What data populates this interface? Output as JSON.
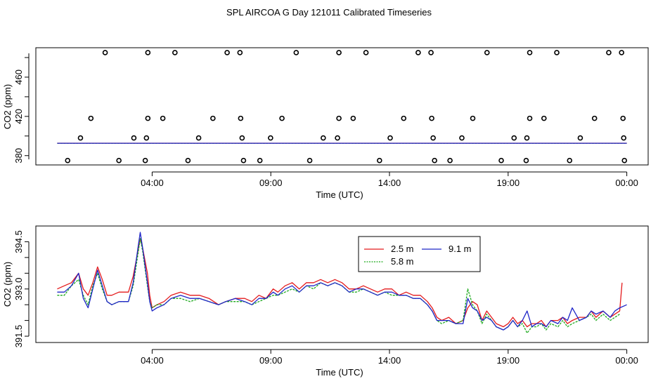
{
  "title": "SPL AIRCOA G  Day 121011  Calibrated Timeseries",
  "chart_data": [
    {
      "type": "scatter",
      "title": "",
      "xlabel": "Time (UTC)",
      "ylabel": "CO2 (ppm)",
      "x_unit": "hours since 00:00 UTC",
      "xlim": [
        -0.9,
        24.9
      ],
      "ylim": [
        370.5,
        490
      ],
      "xticks": [
        4,
        9,
        14,
        19,
        24
      ],
      "xtick_labels": [
        "04:00",
        "09:00",
        "14:00",
        "19:00",
        "00:00"
      ],
      "yticks": [
        380,
        420,
        460
      ],
      "ytick_labels": [
        "380",
        "420",
        "460"
      ],
      "points": [
        {
          "x": 2.02,
          "y": 485
        },
        {
          "x": 3.82,
          "y": 485
        },
        {
          "x": 4.96,
          "y": 485
        },
        {
          "x": 7.16,
          "y": 485
        },
        {
          "x": 7.7,
          "y": 485
        },
        {
          "x": 10.07,
          "y": 485
        },
        {
          "x": 11.87,
          "y": 485
        },
        {
          "x": 13.01,
          "y": 485
        },
        {
          "x": 15.21,
          "y": 485
        },
        {
          "x": 15.75,
          "y": 485
        },
        {
          "x": 18.11,
          "y": 485
        },
        {
          "x": 19.91,
          "y": 485
        },
        {
          "x": 21.05,
          "y": 485
        },
        {
          "x": 23.24,
          "y": 485
        },
        {
          "x": 23.78,
          "y": 485
        },
        {
          "x": 1.42,
          "y": 418
        },
        {
          "x": 3.82,
          "y": 418
        },
        {
          "x": 4.45,
          "y": 418
        },
        {
          "x": 6.56,
          "y": 418
        },
        {
          "x": 7.73,
          "y": 418
        },
        {
          "x": 9.47,
          "y": 418
        },
        {
          "x": 11.87,
          "y": 418
        },
        {
          "x": 12.47,
          "y": 418
        },
        {
          "x": 14.6,
          "y": 418
        },
        {
          "x": 15.78,
          "y": 418
        },
        {
          "x": 17.51,
          "y": 418
        },
        {
          "x": 19.91,
          "y": 418
        },
        {
          "x": 20.51,
          "y": 418
        },
        {
          "x": 22.64,
          "y": 418
        },
        {
          "x": 23.84,
          "y": 418
        },
        {
          "x": 0.98,
          "y": 398
        },
        {
          "x": 3.23,
          "y": 398
        },
        {
          "x": 3.76,
          "y": 398
        },
        {
          "x": 5.96,
          "y": 398
        },
        {
          "x": 7.79,
          "y": 398
        },
        {
          "x": 8.99,
          "y": 398
        },
        {
          "x": 11.21,
          "y": 398
        },
        {
          "x": 11.81,
          "y": 398
        },
        {
          "x": 14.03,
          "y": 398
        },
        {
          "x": 15.84,
          "y": 398
        },
        {
          "x": 17.05,
          "y": 398
        },
        {
          "x": 19.25,
          "y": 398
        },
        {
          "x": 19.79,
          "y": 398
        },
        {
          "x": 22.04,
          "y": 398
        },
        {
          "x": 23.87,
          "y": 398
        },
        {
          "x": 0.44,
          "y": 375
        },
        {
          "x": 2.6,
          "y": 375
        },
        {
          "x": 3.71,
          "y": 375
        },
        {
          "x": 5.51,
          "y": 375
        },
        {
          "x": 7.85,
          "y": 375
        },
        {
          "x": 8.54,
          "y": 375
        },
        {
          "x": 10.64,
          "y": 375
        },
        {
          "x": 13.58,
          "y": 375
        },
        {
          "x": 15.9,
          "y": 375
        },
        {
          "x": 16.55,
          "y": 375
        },
        {
          "x": 18.71,
          "y": 375
        },
        {
          "x": 19.76,
          "y": 375
        },
        {
          "x": 21.59,
          "y": 375
        },
        {
          "x": 23.9,
          "y": 375
        }
      ],
      "series": [
        {
          "name": "2.5 m",
          "color": "#e41a1c",
          "x": [
            0,
            24
          ],
          "y": [
            392.7,
            392.7
          ]
        },
        {
          "name": "5.8 m",
          "color": "#1eaa1e",
          "x": [
            0,
            24
          ],
          "y": [
            392.6,
            392.6
          ]
        },
        {
          "name": "9.1 m",
          "color": "#1f26c8",
          "x": [
            0,
            24
          ],
          "y": [
            392.6,
            392.6
          ]
        }
      ]
    },
    {
      "type": "line",
      "title": "",
      "xlabel": "Time (UTC)",
      "ylabel": "CO2 (ppm)",
      "x_unit": "hours since 00:00 UTC",
      "xlim": [
        -0.9,
        24.9
      ],
      "ylim": [
        391.3,
        395.0
      ],
      "xticks": [
        4,
        9,
        14,
        19,
        24
      ],
      "xtick_labels": [
        "04:00",
        "09:00",
        "14:00",
        "19:00",
        "00:00"
      ],
      "yticks": [
        391.5,
        393.0,
        394.5
      ],
      "ytick_labels": [
        "391.5",
        "393.0",
        "394.5"
      ],
      "legend": {
        "position": "top-right",
        "labels": [
          "2.5 m",
          "5.8 m",
          "9.1 m"
        ]
      },
      "series": [
        {
          "name": "2.5 m",
          "color": "#e41a1c",
          "x": [
            0.0,
            0.3,
            0.6,
            0.9,
            1.1,
            1.3,
            1.5,
            1.7,
            1.9,
            2.1,
            2.3,
            2.6,
            3.0,
            3.2,
            3.4,
            3.5,
            3.6,
            3.8,
            3.9,
            4.0,
            4.2,
            4.5,
            4.8,
            5.2,
            5.6,
            6.0,
            6.4,
            6.8,
            7.1,
            7.5,
            7.9,
            8.2,
            8.5,
            8.8,
            9.1,
            9.3,
            9.6,
            9.9,
            10.2,
            10.5,
            10.8,
            11.1,
            11.4,
            11.7,
            12.0,
            12.3,
            12.6,
            12.9,
            13.2,
            13.5,
            13.8,
            14.1,
            14.4,
            14.7,
            15.0,
            15.3,
            15.6,
            15.8,
            16.0,
            16.2,
            16.5,
            16.8,
            17.1,
            17.3,
            17.5,
            17.7,
            17.9,
            18.1,
            18.3,
            18.5,
            18.8,
            19.0,
            19.2,
            19.4,
            19.6,
            19.8,
            20.0,
            20.2,
            20.4,
            20.6,
            20.8,
            21.1,
            21.3,
            21.5,
            21.7,
            22.0,
            22.3,
            22.5,
            22.7,
            23.0,
            23.3,
            23.5,
            23.7,
            23.8
          ],
          "y": [
            393.0,
            393.1,
            393.2,
            393.5,
            393.0,
            392.8,
            393.2,
            393.7,
            393.3,
            392.8,
            392.8,
            392.9,
            392.9,
            393.4,
            394.2,
            394.6,
            394.3,
            393.5,
            392.8,
            392.4,
            392.5,
            392.6,
            392.8,
            392.9,
            392.8,
            392.8,
            392.7,
            392.5,
            392.6,
            392.7,
            392.7,
            392.6,
            392.8,
            392.7,
            393.0,
            392.9,
            393.1,
            393.2,
            393.0,
            393.2,
            393.2,
            393.3,
            393.2,
            393.3,
            393.2,
            393.0,
            393.0,
            393.1,
            393.0,
            392.9,
            393.0,
            393.0,
            392.8,
            392.9,
            392.8,
            392.8,
            392.6,
            392.4,
            392.1,
            392.0,
            392.1,
            391.9,
            392.0,
            392.4,
            392.6,
            392.5,
            392.0,
            392.3,
            392.1,
            391.9,
            391.8,
            391.9,
            392.1,
            391.9,
            392.0,
            391.8,
            391.9,
            391.9,
            392.0,
            391.8,
            392.0,
            392.0,
            392.1,
            391.9,
            392.0,
            392.1,
            392.1,
            392.3,
            392.1,
            392.3,
            392.1,
            392.2,
            392.3,
            393.2
          ]
        },
        {
          "name": "5.8 m",
          "color": "#1eaa1e",
          "x": [
            0.0,
            0.3,
            0.6,
            0.9,
            1.1,
            1.3,
            1.5,
            1.7,
            1.9,
            2.1,
            2.3,
            2.6,
            3.0,
            3.2,
            3.4,
            3.5,
            3.6,
            3.8,
            3.9,
            4.0,
            4.2,
            4.5,
            4.8,
            5.2,
            5.6,
            6.0,
            6.4,
            6.8,
            7.1,
            7.5,
            7.9,
            8.2,
            8.5,
            8.8,
            9.1,
            9.3,
            9.6,
            9.9,
            10.2,
            10.5,
            10.8,
            11.1,
            11.4,
            11.7,
            12.0,
            12.3,
            12.6,
            12.9,
            13.2,
            13.5,
            13.8,
            14.1,
            14.4,
            14.7,
            15.0,
            15.3,
            15.6,
            15.8,
            16.0,
            16.2,
            16.5,
            16.8,
            17.1,
            17.3,
            17.5,
            17.7,
            17.9,
            18.1,
            18.3,
            18.5,
            18.8,
            19.0,
            19.2,
            19.4,
            19.6,
            19.8,
            20.0,
            20.2,
            20.4,
            20.6,
            20.8,
            21.1,
            21.3,
            21.5,
            21.7,
            22.0,
            22.3,
            22.5,
            22.7,
            23.0,
            23.3,
            23.5,
            23.7
          ],
          "y": [
            392.8,
            392.8,
            393.1,
            393.3,
            392.8,
            392.5,
            393.1,
            393.5,
            393.0,
            392.6,
            392.5,
            392.6,
            392.6,
            393.1,
            394.1,
            394.6,
            394.2,
            393.1,
            392.6,
            392.4,
            392.5,
            392.5,
            392.7,
            392.7,
            392.6,
            392.7,
            392.6,
            392.5,
            392.6,
            392.6,
            392.6,
            392.5,
            392.6,
            392.7,
            392.8,
            392.8,
            392.9,
            393.0,
            392.9,
            393.1,
            393.0,
            393.2,
            393.1,
            393.2,
            393.1,
            392.9,
            392.9,
            393.0,
            392.9,
            392.8,
            392.9,
            392.8,
            392.8,
            392.8,
            392.7,
            392.7,
            392.5,
            392.3,
            392.0,
            391.9,
            392.0,
            391.9,
            392.0,
            393.0,
            392.5,
            392.3,
            391.9,
            392.2,
            392.0,
            391.8,
            391.7,
            391.8,
            392.0,
            391.8,
            391.9,
            391.6,
            391.8,
            391.8,
            391.9,
            391.7,
            391.9,
            391.8,
            392.0,
            391.8,
            391.9,
            392.0,
            392.1,
            392.2,
            392.0,
            392.2,
            392.0,
            392.1,
            392.2
          ]
        },
        {
          "name": "9.1 m",
          "color": "#1f26c8",
          "x": [
            0.0,
            0.3,
            0.6,
            0.9,
            1.1,
            1.3,
            1.5,
            1.7,
            1.9,
            2.1,
            2.3,
            2.6,
            3.0,
            3.2,
            3.4,
            3.5,
            3.6,
            3.8,
            3.9,
            4.0,
            4.2,
            4.5,
            4.8,
            5.2,
            5.6,
            6.0,
            6.4,
            6.8,
            7.1,
            7.5,
            7.9,
            8.2,
            8.5,
            8.8,
            9.1,
            9.3,
            9.6,
            9.9,
            10.2,
            10.5,
            10.8,
            11.1,
            11.4,
            11.7,
            12.0,
            12.3,
            12.6,
            12.9,
            13.2,
            13.5,
            13.8,
            14.1,
            14.4,
            14.7,
            15.0,
            15.3,
            15.6,
            15.8,
            16.0,
            16.2,
            16.5,
            16.8,
            17.1,
            17.3,
            17.5,
            17.7,
            17.9,
            18.1,
            18.3,
            18.5,
            18.8,
            19.0,
            19.2,
            19.4,
            19.6,
            19.8,
            20.0,
            20.2,
            20.4,
            20.6,
            20.8,
            21.1,
            21.3,
            21.5,
            21.7,
            22.0,
            22.3,
            22.5,
            22.7,
            23.0,
            23.3,
            23.5,
            23.7,
            24.0
          ],
          "y": [
            392.9,
            392.9,
            393.1,
            393.5,
            392.7,
            392.4,
            393.0,
            393.6,
            393.1,
            392.6,
            392.5,
            392.6,
            392.6,
            393.2,
            394.3,
            394.8,
            394.3,
            393.2,
            392.6,
            392.3,
            392.4,
            392.5,
            392.7,
            392.8,
            392.7,
            392.7,
            392.6,
            392.5,
            392.6,
            392.7,
            392.6,
            392.5,
            392.7,
            392.7,
            392.9,
            392.8,
            393.0,
            393.1,
            392.9,
            393.1,
            393.1,
            393.2,
            393.1,
            393.2,
            393.1,
            392.9,
            393.0,
            393.0,
            392.9,
            392.8,
            392.9,
            392.9,
            392.8,
            392.8,
            392.7,
            392.7,
            392.5,
            392.3,
            392.0,
            392.0,
            392.0,
            391.9,
            391.9,
            392.7,
            392.4,
            392.3,
            392.0,
            392.1,
            392.0,
            391.8,
            391.7,
            391.8,
            392.0,
            391.8,
            392.0,
            392.3,
            391.8,
            391.9,
            391.9,
            391.8,
            392.0,
            391.9,
            392.1,
            392.0,
            392.4,
            392.0,
            392.1,
            392.3,
            392.2,
            392.3,
            392.1,
            392.3,
            392.4,
            392.5
          ]
        }
      ]
    }
  ]
}
